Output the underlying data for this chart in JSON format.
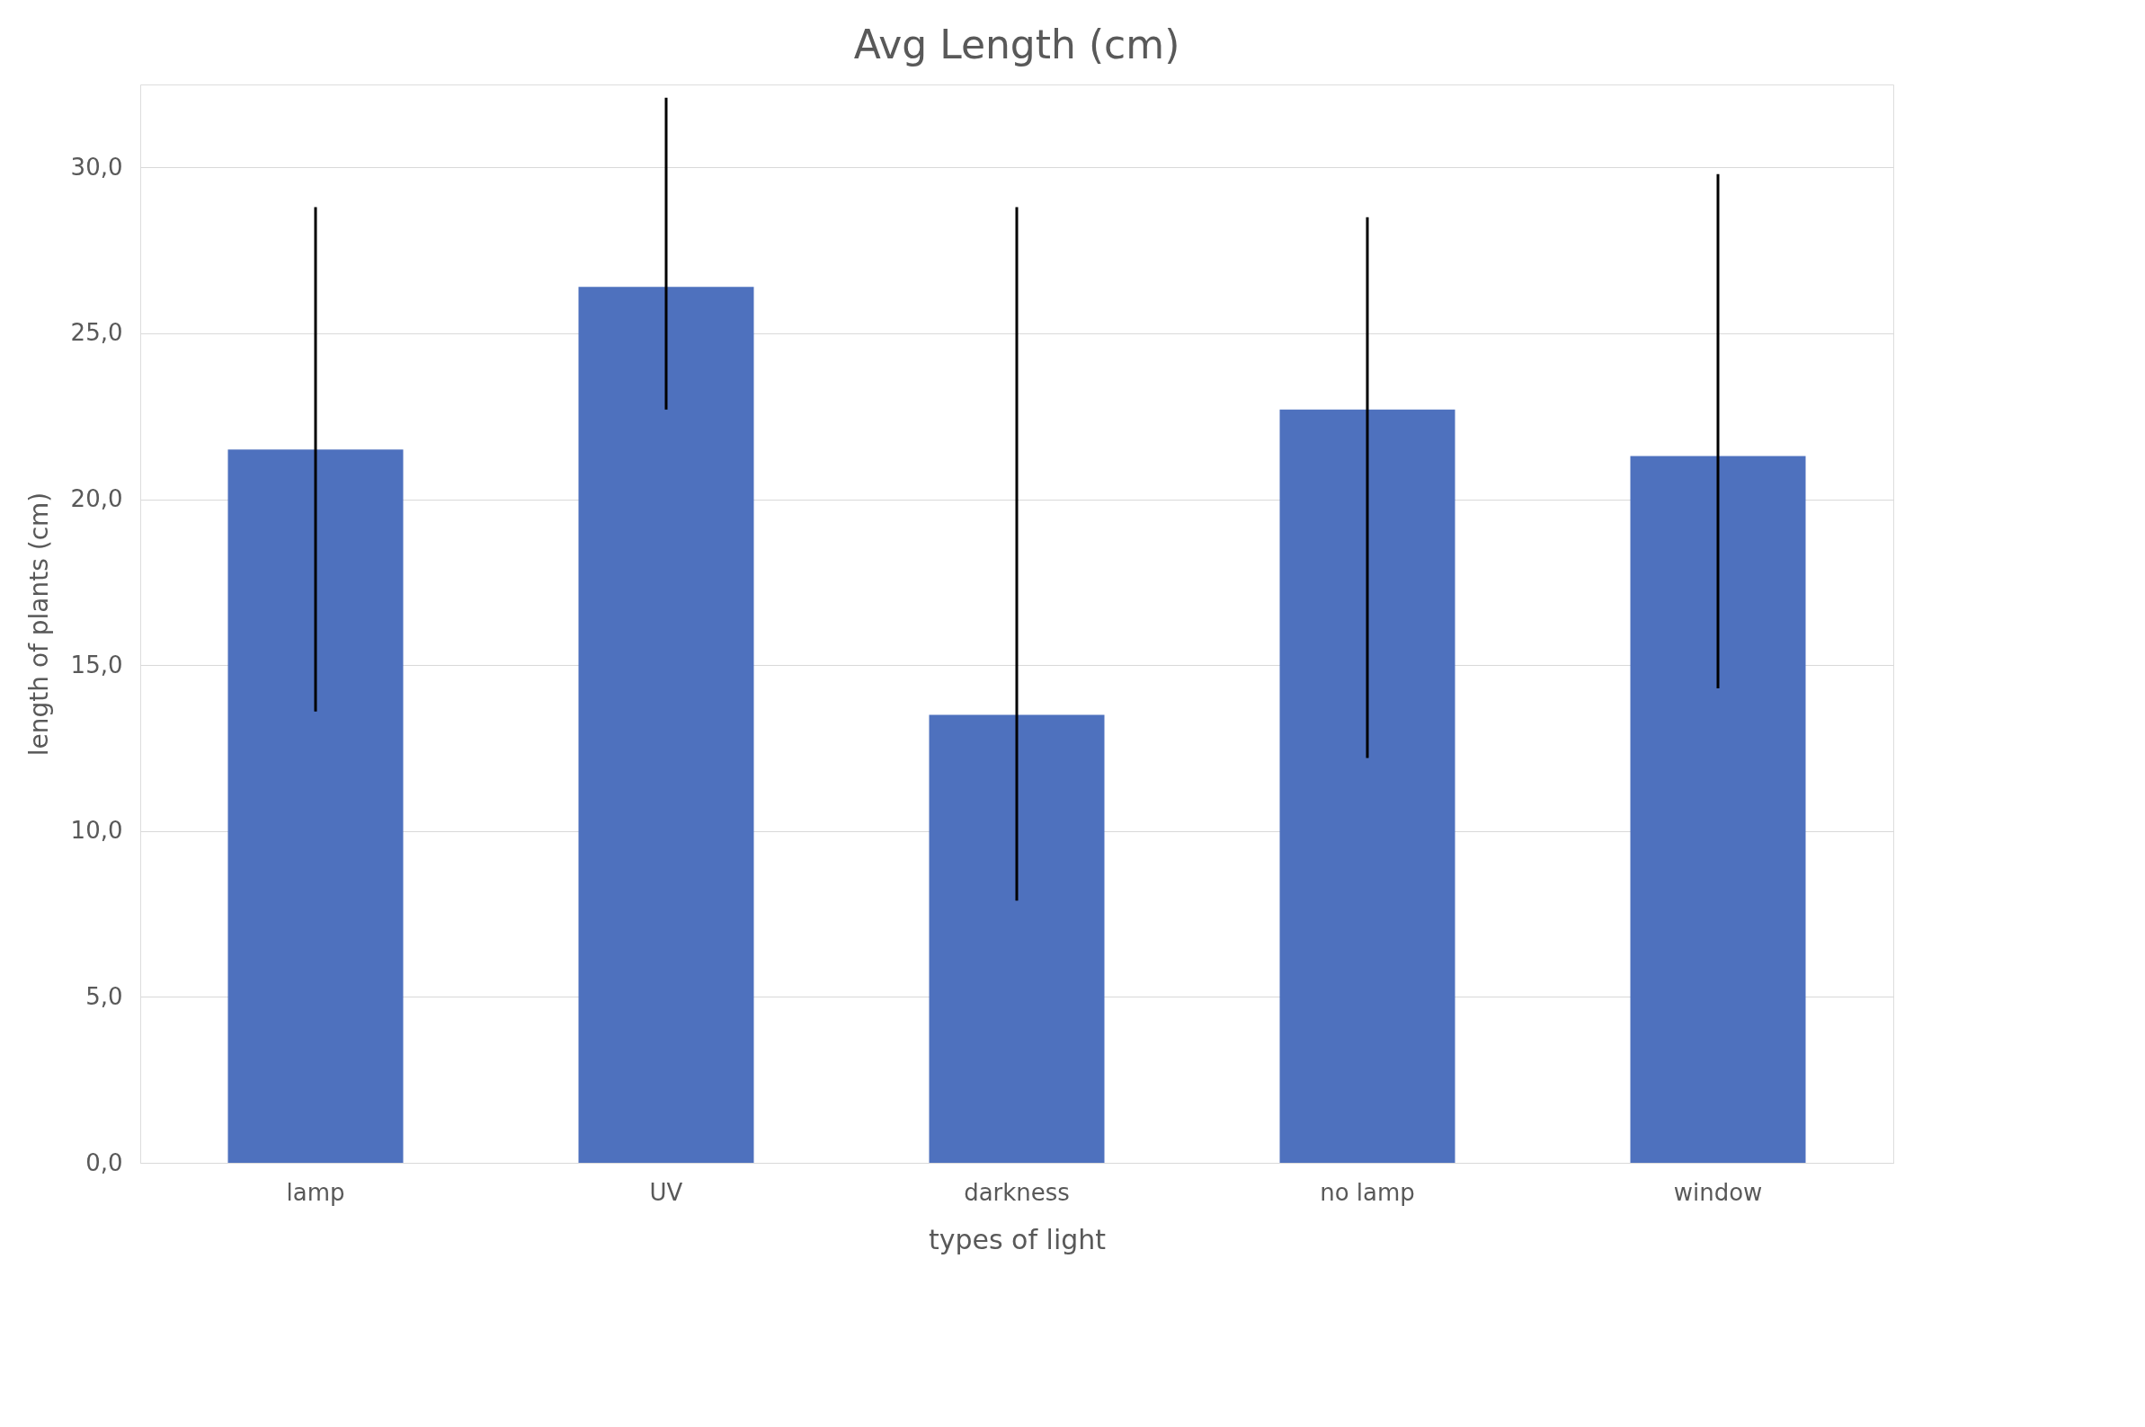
{
  "chart_data": {
    "type": "bar",
    "title": "Avg Length (cm)",
    "xlabel": "types of light",
    "ylabel": "length of plants (cm)",
    "categories": [
      "lamp",
      "UV",
      "darkness",
      "no lamp",
      "window"
    ],
    "values": [
      21.5,
      26.4,
      13.5,
      22.7,
      21.3
    ],
    "color": "#4e71be",
    "errors": [
      [
        13.6,
        28.8
      ],
      [
        22.7,
        32.1
      ],
      [
        7.9,
        28.8
      ],
      [
        12.2,
        28.5
      ],
      [
        14.3,
        29.8
      ]
    ],
    "ylim": [
      0,
      32.5
    ],
    "yticks": [
      {
        "value": 0,
        "label": "0,0"
      },
      {
        "value": 5,
        "label": "5,0"
      },
      {
        "value": 10,
        "label": "10,0"
      },
      {
        "value": 15,
        "label": "15,0"
      },
      {
        "value": 20,
        "label": "20,0"
      },
      {
        "value": 25,
        "label": "25,0"
      },
      {
        "value": 30,
        "label": "30,0"
      }
    ],
    "grid": "y"
  }
}
